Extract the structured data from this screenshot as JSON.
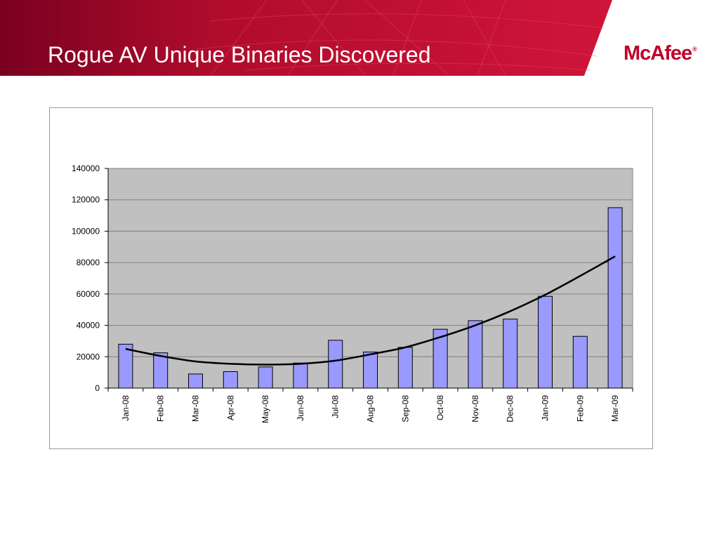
{
  "slide": {
    "title": "Rogue AV Unique Binaries Discovered",
    "logo_text": "McAfee",
    "logo_mark": "®"
  },
  "colors": {
    "header_dark": "#7a0020",
    "header_bright": "#c8102e",
    "logo_red": "#c0002a",
    "plot_bg": "#c0c0c0",
    "bar_fill": "#9999ff",
    "bar_stroke": "#000000",
    "trend_line": "#000000"
  },
  "chart_data": {
    "type": "bar",
    "categories": [
      "Jan-08",
      "Feb-08",
      "Mar-08",
      "Apr-08",
      "May-08",
      "Jun-08",
      "Jul-08",
      "Aug-08",
      "Sep-08",
      "Oct-08",
      "Nov-08",
      "Dec-08",
      "Jan-09",
      "Feb-09",
      "Mar-09"
    ],
    "values": [
      28000,
      22500,
      9000,
      10500,
      13500,
      16000,
      30500,
      23000,
      26000,
      37500,
      43000,
      44000,
      58500,
      33000,
      115000
    ],
    "trendline": {
      "type": "polynomial",
      "values": [
        25000,
        20500,
        17000,
        15500,
        15000,
        15500,
        17500,
        21500,
        26000,
        32500,
        40000,
        49000,
        59500,
        71500,
        84000
      ]
    },
    "title": "",
    "xlabel": "",
    "ylabel": "",
    "ylim": [
      0,
      140000
    ],
    "yticks": [
      0,
      20000,
      40000,
      60000,
      80000,
      100000,
      120000,
      140000
    ],
    "grid": true,
    "legend": "none"
  }
}
